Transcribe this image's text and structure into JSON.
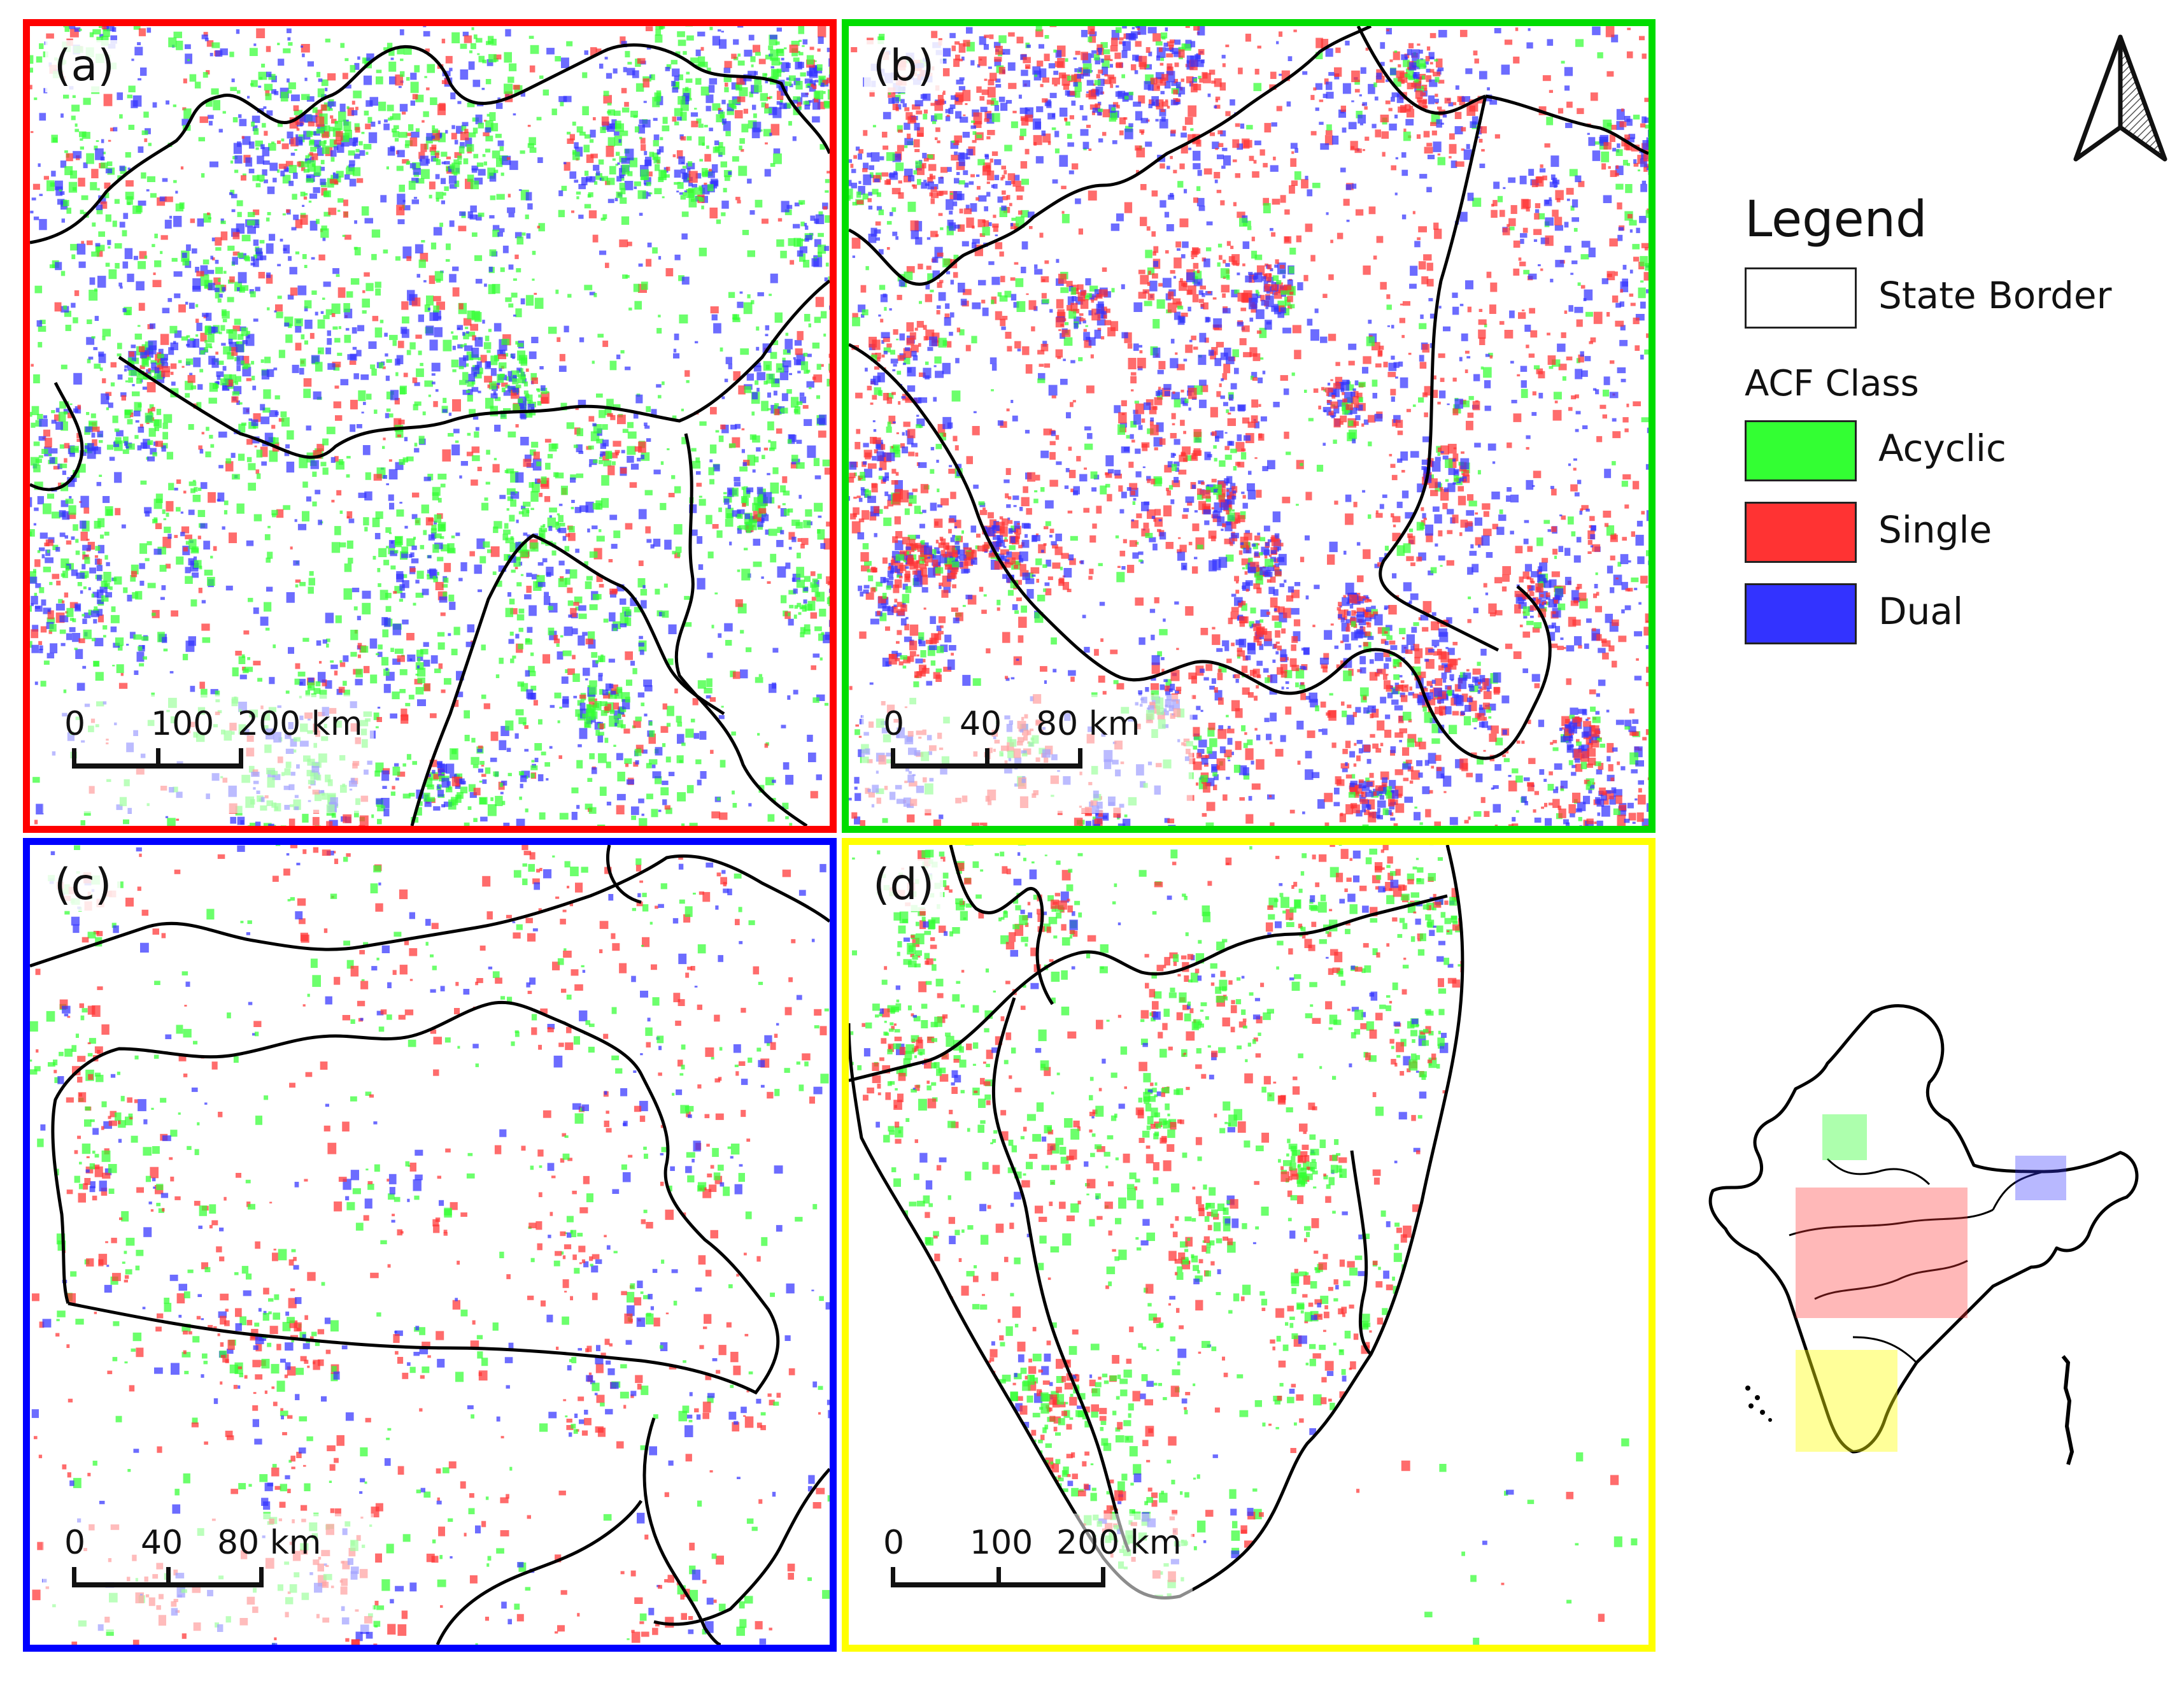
{
  "panels": [
    {
      "label": "(a)",
      "border_color": "#ff0000",
      "scale_ticks": [
        "0",
        "100",
        "200 km"
      ]
    },
    {
      "label": "(b)",
      "border_color": "#00dd00",
      "scale_ticks": [
        "0",
        "40",
        "80 km"
      ]
    },
    {
      "label": "(c)",
      "border_color": "#0000ff",
      "scale_ticks": [
        "0",
        "40",
        "80 km"
      ]
    },
    {
      "label": "(d)",
      "border_color": "#ffff00",
      "scale_ticks": [
        "0",
        "100",
        "200 km"
      ]
    }
  ],
  "legend": {
    "title": "Legend",
    "border_item": "State Border",
    "class_title": "ACF Class",
    "classes": [
      {
        "label": "Acyclic",
        "color": "#33ff33"
      },
      {
        "label": "Single",
        "color": "#ff3333"
      },
      {
        "label": "Dual",
        "color": "#3333ff"
      }
    ]
  },
  "colors": {
    "acyclic": "#33ff33",
    "single": "#ff3333",
    "dual": "#3333ff",
    "border_line": "#000000"
  },
  "icons": {
    "north_arrow": "north-arrow-icon",
    "locator_map": "india-locator-map"
  }
}
